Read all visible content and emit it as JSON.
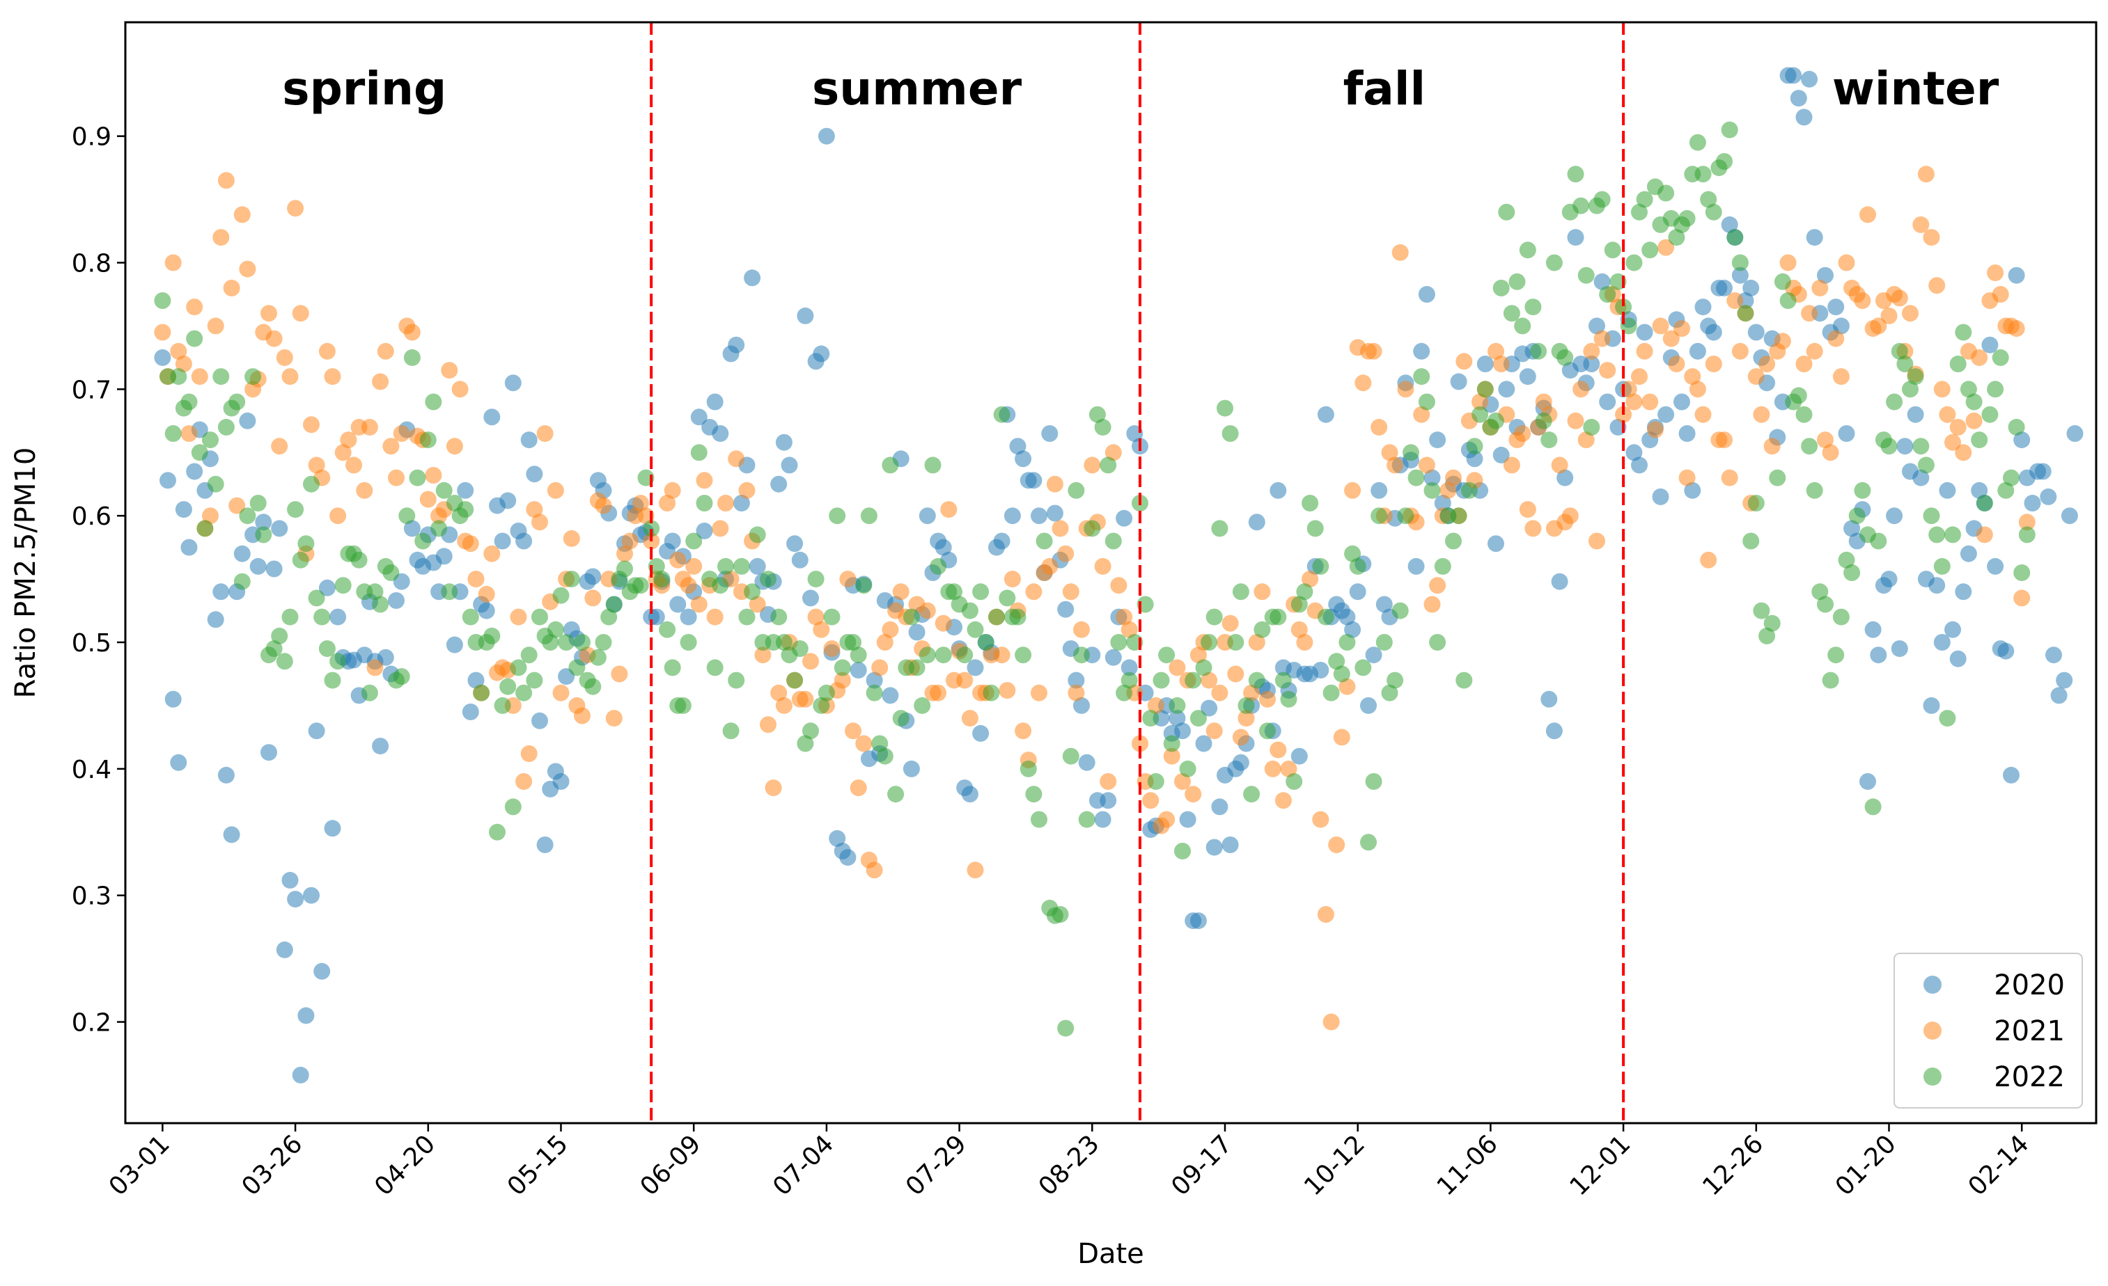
{
  "chart_data": {
    "type": "scatter",
    "title": "",
    "xlabel": "Date",
    "ylabel": "Ratio PM2.5/PM10",
    "ylim": [
      0.12,
      0.99
    ],
    "xlim": [
      -7,
      364
    ],
    "yticks": [
      0.2,
      0.3,
      0.4,
      0.5,
      0.6,
      0.7,
      0.8,
      0.9
    ],
    "xticks": [
      {
        "label": "03-01",
        "day": 0
      },
      {
        "label": "03-26",
        "day": 25
      },
      {
        "label": "04-20",
        "day": 50
      },
      {
        "label": "05-15",
        "day": 75
      },
      {
        "label": "06-09",
        "day": 100
      },
      {
        "label": "07-04",
        "day": 125
      },
      {
        "label": "07-29",
        "day": 150
      },
      {
        "label": "08-23",
        "day": 175
      },
      {
        "label": "09-17",
        "day": 200
      },
      {
        "label": "10-12",
        "day": 225
      },
      {
        "label": "11-06",
        "day": 250
      },
      {
        "label": "12-01",
        "day": 275
      },
      {
        "label": "12-26",
        "day": 300
      },
      {
        "label": "01-20",
        "day": 325
      },
      {
        "label": "02-14",
        "day": 350
      }
    ],
    "season_boundaries": [
      92,
      184,
      275
    ],
    "seasons": [
      {
        "name": "spring",
        "center_day": 38
      },
      {
        "name": "summer",
        "center_day": 142
      },
      {
        "name": "fall",
        "center_day": 230
      },
      {
        "name": "winter",
        "center_day": 330
      }
    ],
    "legend_position": "lower-right",
    "series": [
      {
        "name": "2020",
        "color": "#1f77b4",
        "day_start": 0,
        "points": [
          0.725,
          0.628,
          0.455,
          0.405,
          0.605,
          0.575,
          0.635,
          0.668,
          0.62,
          0.645,
          0.518,
          0.54,
          0.395,
          0.348,
          0.54,
          0.57,
          0.675,
          0.585,
          0.56,
          0.595,
          0.413,
          0.558,
          0.59,
          0.257,
          0.312,
          0.297,
          0.158,
          0.205,
          0.3,
          0.43,
          0.24,
          0.543,
          0.353,
          0.52,
          0.488,
          0.485,
          0.486,
          0.458,
          0.49,
          0.532,
          0.485,
          0.418,
          0.488,
          0.475,
          0.533,
          0.548,
          0.668,
          0.59,
          0.565,
          0.56,
          0.585,
          0.563,
          0.54,
          0.568,
          0.585,
          0.498,
          0.54,
          0.62,
          0.445,
          0.47,
          0.53,
          0.525,
          0.678,
          0.608,
          0.58,
          0.612,
          0.705,
          0.588,
          0.58,
          0.66,
          0.633,
          0.438,
          0.34,
          0.384,
          0.398,
          0.39,
          0.473,
          0.51,
          0.503,
          0.488,
          0.548,
          0.552,
          0.628,
          0.62,
          0.602,
          0.53,
          0.548,
          0.578,
          0.602,
          0.608,
          0.585,
          0.587,
          0.52,
          0.52,
          0.548,
          0.572,
          0.58,
          0.53,
          0.568,
          0.52,
          0.54,
          0.678,
          0.588,
          0.67,
          0.69,
          0.665,
          0.55,
          0.728,
          0.735,
          0.61,
          0.64,
          0.788,
          0.56,
          0.548,
          0.522,
          0.548,
          0.625,
          0.658,
          0.64,
          0.578,
          0.565,
          0.758,
          0.535,
          0.722,
          0.728,
          0.9,
          0.492,
          0.345,
          0.335,
          0.33,
          0.545,
          0.478,
          0.546,
          0.408,
          0.47,
          0.412,
          0.533,
          0.458,
          0.53,
          0.645,
          0.438,
          0.4,
          0.508,
          0.522,
          0.6,
          0.555,
          0.58,
          0.575,
          0.565,
          0.512,
          0.495,
          0.385,
          0.38,
          0.48,
          0.428,
          0.5,
          0.492,
          0.575,
          0.58,
          0.68,
          0.6,
          0.655,
          0.645,
          0.628,
          0.628,
          0.6,
          0.555,
          0.665,
          0.602,
          0.565,
          0.526,
          0.495,
          0.47,
          0.45,
          0.405,
          0.49,
          0.375,
          0.36,
          0.375,
          0.488,
          0.52,
          0.598,
          0.48,
          0.665,
          0.655,
          0.46,
          0.352,
          0.355,
          0.44,
          0.45,
          0.428,
          0.44,
          0.43,
          0.36,
          0.28,
          0.28,
          0.42,
          0.448,
          0.338,
          0.37,
          0.395,
          0.34,
          0.4,
          0.405,
          0.42,
          0.45,
          0.595,
          0.465,
          0.462,
          0.43,
          0.62,
          0.48,
          0.462,
          0.478,
          0.41,
          0.475,
          0.475,
          0.56,
          0.478,
          0.68,
          0.52,
          0.53,
          0.525,
          0.52,
          0.51,
          0.54,
          0.562,
          0.45,
          0.49,
          0.62,
          0.53,
          0.52,
          0.598,
          0.64,
          0.705,
          0.644,
          0.56,
          0.73,
          0.775,
          0.63,
          0.66,
          0.61,
          0.6,
          0.625,
          0.706,
          0.62,
          0.652,
          0.645,
          0.62,
          0.72,
          0.688,
          0.578,
          0.648,
          0.7,
          0.72,
          0.67,
          0.728,
          0.71,
          0.73,
          0.67,
          0.685,
          0.455,
          0.43,
          0.548,
          0.63,
          0.715,
          0.82,
          0.72,
          0.705,
          0.72,
          0.75,
          0.785,
          0.69,
          0.74,
          0.67,
          0.7,
          0.755,
          0.65,
          0.64,
          0.745,
          0.66,
          0.67,
          0.615,
          0.68,
          0.725,
          0.755,
          0.69,
          0.665,
          0.62,
          0.73,
          0.765,
          0.75,
          0.745,
          0.78,
          0.78,
          0.83,
          0.82,
          0.79,
          0.77,
          0.78,
          0.745,
          0.725,
          0.705,
          0.74,
          0.662,
          0.69,
          0.948,
          0.948,
          0.93,
          0.915,
          0.945,
          0.82,
          0.76,
          0.79,
          0.745,
          0.765,
          0.75,
          0.665,
          0.59,
          0.58,
          0.605,
          0.39,
          0.51,
          0.49,
          0.545,
          0.55,
          0.6,
          0.495,
          0.655,
          0.635,
          0.68,
          0.63,
          0.55,
          0.45,
          0.545,
          0.5,
          0.62,
          0.51,
          0.487,
          0.54,
          0.57,
          0.59,
          0.62,
          0.61,
          0.735,
          0.56,
          0.495,
          0.493,
          0.395,
          0.79,
          0.66,
          0.63,
          0.61,
          0.635,
          0.635,
          0.615,
          0.49,
          0.458,
          0.47,
          0.6,
          0.665
        ]
      },
      {
        "name": "2021",
        "color": "#ff7f0e",
        "day_start": 0,
        "points": [
          0.745,
          0.71,
          0.8,
          0.73,
          0.72,
          0.665,
          0.765,
          0.71,
          0.59,
          0.6,
          0.75,
          0.82,
          0.865,
          0.78,
          0.608,
          0.838,
          0.795,
          0.7,
          0.708,
          0.745,
          0.76,
          0.74,
          0.655,
          0.725,
          0.71,
          0.843,
          0.76,
          0.57,
          0.672,
          0.64,
          0.63,
          0.73,
          0.71,
          0.6,
          0.65,
          0.66,
          0.64,
          0.67,
          0.62,
          0.67,
          0.48,
          0.706,
          0.73,
          0.655,
          0.63,
          0.665,
          0.75,
          0.745,
          0.663,
          0.66,
          0.613,
          0.632,
          0.6,
          0.605,
          0.715,
          0.655,
          0.7,
          0.58,
          0.578,
          0.55,
          0.46,
          0.538,
          0.57,
          0.476,
          0.48,
          0.478,
          0.45,
          0.52,
          0.39,
          0.412,
          0.605,
          0.595,
          0.665,
          0.532,
          0.62,
          0.46,
          0.55,
          0.582,
          0.45,
          0.442,
          0.49,
          0.535,
          0.612,
          0.608,
          0.55,
          0.44,
          0.475,
          0.57,
          0.58,
          0.6,
          0.61,
          0.6,
          0.58,
          0.55,
          0.545,
          0.61,
          0.62,
          0.565,
          0.55,
          0.545,
          0.56,
          0.53,
          0.628,
          0.545,
          0.52,
          0.59,
          0.61,
          0.55,
          0.645,
          0.54,
          0.62,
          0.58,
          0.53,
          0.49,
          0.435,
          0.385,
          0.46,
          0.45,
          0.5,
          0.47,
          0.455,
          0.455,
          0.485,
          0.52,
          0.51,
          0.45,
          0.495,
          0.462,
          0.47,
          0.55,
          0.43,
          0.385,
          0.42,
          0.328,
          0.32,
          0.48,
          0.5,
          0.51,
          0.525,
          0.54,
          0.52,
          0.48,
          0.53,
          0.495,
          0.525,
          0.46,
          0.46,
          0.515,
          0.605,
          0.47,
          0.493,
          0.47,
          0.44,
          0.32,
          0.46,
          0.46,
          0.49,
          0.52,
          0.49,
          0.462,
          0.55,
          0.525,
          0.43,
          0.407,
          0.54,
          0.46,
          0.555,
          0.56,
          0.625,
          0.59,
          0.57,
          0.54,
          0.46,
          0.51,
          0.59,
          0.64,
          0.595,
          0.56,
          0.39,
          0.65,
          0.545,
          0.52,
          0.51,
          0.46,
          0.42,
          0.39,
          0.375,
          0.45,
          0.355,
          0.36,
          0.41,
          0.48,
          0.39,
          0.47,
          0.38,
          0.49,
          0.5,
          0.47,
          0.43,
          0.46,
          0.5,
          0.515,
          0.475,
          0.425,
          0.44,
          0.46,
          0.5,
          0.54,
          0.455,
          0.4,
          0.415,
          0.375,
          0.4,
          0.53,
          0.51,
          0.5,
          0.55,
          0.525,
          0.36,
          0.285,
          0.2,
          0.34,
          0.425,
          0.465,
          0.62,
          0.733,
          0.705,
          0.73,
          0.73,
          0.67,
          0.6,
          0.65,
          0.64,
          0.808,
          0.7,
          0.6,
          0.595,
          0.68,
          0.64,
          0.53,
          0.545,
          0.6,
          0.62,
          0.63,
          0.6,
          0.722,
          0.675,
          0.628,
          0.69,
          0.7,
          0.67,
          0.73,
          0.72,
          0.68,
          0.64,
          0.66,
          0.665,
          0.605,
          0.59,
          0.67,
          0.69,
          0.68,
          0.59,
          0.64,
          0.595,
          0.6,
          0.675,
          0.7,
          0.66,
          0.73,
          0.58,
          0.74,
          0.715,
          0.775,
          0.765,
          0.68,
          0.7,
          0.69,
          0.71,
          0.73,
          0.69,
          0.668,
          0.75,
          0.812,
          0.74,
          0.72,
          0.748,
          0.63,
          0.71,
          0.7,
          0.68,
          0.565,
          0.72,
          0.66,
          0.66,
          0.63,
          0.77,
          0.73,
          0.76,
          0.61,
          0.71,
          0.68,
          0.72,
          0.655,
          0.73,
          0.738,
          0.8,
          0.78,
          0.775,
          0.72,
          0.76,
          0.73,
          0.78,
          0.66,
          0.65,
          0.74,
          0.71,
          0.8,
          0.78,
          0.775,
          0.77,
          0.838,
          0.748,
          0.75,
          0.77,
          0.758,
          0.775,
          0.772,
          0.73,
          0.76,
          0.712,
          0.83,
          0.87,
          0.82,
          0.782,
          0.7,
          0.68,
          0.658,
          0.67,
          0.65,
          0.73,
          0.675,
          0.725,
          0.585,
          0.77,
          0.792,
          0.775,
          0.75,
          0.75,
          0.748,
          0.535,
          0.595
        ]
      },
      {
        "name": "2022",
        "color": "#2ca02c",
        "day_start": 0,
        "points": [
          0.77,
          0.71,
          0.665,
          0.71,
          0.685,
          0.69,
          0.74,
          0.65,
          0.59,
          0.66,
          0.625,
          0.71,
          0.67,
          0.685,
          0.69,
          0.548,
          0.6,
          0.71,
          0.61,
          0.585,
          0.49,
          0.495,
          0.505,
          0.485,
          0.52,
          0.605,
          0.565,
          0.578,
          0.625,
          0.535,
          0.52,
          0.495,
          0.47,
          0.485,
          0.545,
          0.57,
          0.57,
          0.565,
          0.54,
          0.46,
          0.54,
          0.53,
          0.56,
          0.555,
          0.47,
          0.473,
          0.6,
          0.725,
          0.63,
          0.58,
          0.66,
          0.69,
          0.59,
          0.62,
          0.54,
          0.61,
          0.6,
          0.605,
          0.52,
          0.5,
          0.46,
          0.5,
          0.505,
          0.35,
          0.45,
          0.465,
          0.37,
          0.48,
          0.46,
          0.49,
          0.47,
          0.52,
          0.505,
          0.5,
          0.51,
          0.537,
          0.5,
          0.55,
          0.48,
          0.5,
          0.47,
          0.465,
          0.488,
          0.5,
          0.52,
          0.53,
          0.55,
          0.558,
          0.54,
          0.545,
          0.545,
          0.63,
          0.59,
          0.56,
          0.55,
          0.51,
          0.48,
          0.45,
          0.45,
          0.5,
          0.58,
          0.65,
          0.61,
          0.55,
          0.48,
          0.545,
          0.56,
          0.43,
          0.47,
          0.56,
          0.52,
          0.54,
          0.585,
          0.5,
          0.55,
          0.5,
          0.52,
          0.5,
          0.49,
          0.47,
          0.495,
          0.42,
          0.43,
          0.55,
          0.45,
          0.46,
          0.52,
          0.6,
          0.48,
          0.5,
          0.5,
          0.49,
          0.545,
          0.6,
          0.46,
          0.42,
          0.41,
          0.64,
          0.38,
          0.44,
          0.48,
          0.52,
          0.48,
          0.45,
          0.49,
          0.64,
          0.56,
          0.49,
          0.54,
          0.54,
          0.53,
          0.49,
          0.525,
          0.51,
          0.54,
          0.5,
          0.46,
          0.52,
          0.68,
          0.535,
          0.52,
          0.52,
          0.49,
          0.4,
          0.38,
          0.36,
          0.58,
          0.29,
          0.284,
          0.285,
          0.195,
          0.41,
          0.62,
          0.49,
          0.36,
          0.59,
          0.68,
          0.67,
          0.64,
          0.58,
          0.5,
          0.46,
          0.47,
          0.5,
          0.61,
          0.53,
          0.44,
          0.39,
          0.47,
          0.49,
          0.42,
          0.45,
          0.335,
          0.4,
          0.47,
          0.44,
          0.48,
          0.5,
          0.52,
          0.59,
          0.685,
          0.665,
          0.5,
          0.54,
          0.45,
          0.38,
          0.47,
          0.51,
          0.43,
          0.52,
          0.52,
          0.47,
          0.455,
          0.39,
          0.53,
          0.54,
          0.61,
          0.59,
          0.56,
          0.52,
          0.46,
          0.485,
          0.475,
          0.5,
          0.57,
          0.56,
          0.48,
          0.342,
          0.39,
          0.6,
          0.5,
          0.46,
          0.47,
          0.525,
          0.6,
          0.65,
          0.63,
          0.71,
          0.69,
          0.62,
          0.5,
          0.56,
          0.6,
          0.58,
          0.6,
          0.47,
          0.62,
          0.655,
          0.68,
          0.7,
          0.67,
          0.675,
          0.78,
          0.84,
          0.76,
          0.785,
          0.75,
          0.81,
          0.765,
          0.73,
          0.675,
          0.66,
          0.8,
          0.73,
          0.725,
          0.84,
          0.87,
          0.845,
          0.79,
          0.67,
          0.845,
          0.85,
          0.775,
          0.81,
          0.785,
          0.765,
          0.75,
          0.8,
          0.84,
          0.85,
          0.81,
          0.86,
          0.83,
          0.855,
          0.835,
          0.82,
          0.83,
          0.835,
          0.87,
          0.895,
          0.87,
          0.85,
          0.84,
          0.875,
          0.88,
          0.905,
          0.82,
          0.8,
          0.76,
          0.58,
          0.61,
          0.525,
          0.505,
          0.515,
          0.63,
          0.785,
          0.77,
          0.69,
          0.695,
          0.68,
          0.655,
          0.62,
          0.54,
          0.53,
          0.47,
          0.49,
          0.52,
          0.565,
          0.555,
          0.6,
          0.62,
          0.585,
          0.37,
          0.58,
          0.66,
          0.655,
          0.69,
          0.73,
          0.72,
          0.7,
          0.71,
          0.655,
          0.64,
          0.6,
          0.585,
          0.56,
          0.44,
          0.585,
          0.72,
          0.745,
          0.7,
          0.69,
          0.66,
          0.61,
          0.68,
          0.7,
          0.725,
          0.62,
          0.63,
          0.67,
          0.555,
          0.585
        ]
      }
    ]
  }
}
